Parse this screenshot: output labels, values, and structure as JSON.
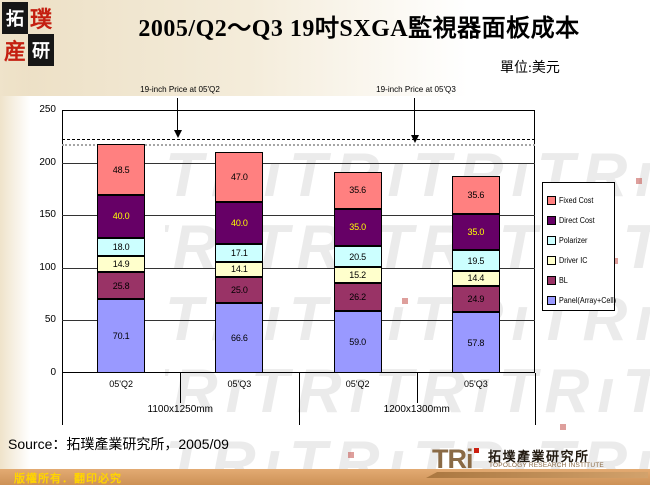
{
  "header": {
    "title": "2005/Q2～Q3 19吋SXGA監視器面板成本",
    "unit_label": "單位:美元",
    "seal_chars": [
      "拓",
      "璞",
      "産",
      "研"
    ]
  },
  "chart_data": {
    "type": "bar",
    "stacked": true,
    "title": "2005/Q2～Q3 19吋SXGA監視器面板成本",
    "unit": "美元",
    "ylim": [
      0,
      250
    ],
    "yticks": [
      0,
      50,
      100,
      150,
      200,
      250
    ],
    "grid": true,
    "legend_position": "right",
    "categories": [
      "05'Q2",
      "05'Q3",
      "05'Q2",
      "05'Q3"
    ],
    "group_labels": [
      "1100x1250mm",
      "1200x1300mm"
    ],
    "series": [
      {
        "name": "Panel(Array+Cell)",
        "color": "#9999FF",
        "label_color": "#000000",
        "values": [
          70.1,
          66.6,
          59.0,
          57.8
        ]
      },
      {
        "name": "BL",
        "color": "#993366",
        "label_color": "#000000",
        "values": [
          25.8,
          25.0,
          26.2,
          24.9
        ]
      },
      {
        "name": "Driver IC",
        "color": "#FFFFCC",
        "label_color": "#000000",
        "values": [
          14.9,
          14.1,
          15.2,
          14.4
        ]
      },
      {
        "name": "Polarizer",
        "color": "#CCFFFF",
        "label_color": "#000000",
        "values": [
          18.0,
          17.1,
          20.5,
          19.5
        ]
      },
      {
        "name": "Direct Cost",
        "color": "#660066",
        "label_color": "#FFFF00",
        "values": [
          40.0,
          40.0,
          35.0,
          35.0
        ]
      },
      {
        "name": "Fixed Cost",
        "color": "#FF8080",
        "label_color": "#000000",
        "values": [
          48.5,
          47.0,
          35.6,
          35.6
        ]
      }
    ],
    "legend_order": [
      "Fixed Cost",
      "Direct Cost",
      "Polarizer",
      "Driver IC",
      "BL",
      "Panel(Array+Cell)"
    ],
    "price_lines": [
      {
        "label": "19-inch Price at 05'Q2",
        "value": 222,
        "color": "#000000",
        "style": "dashed"
      },
      {
        "label": "19-inch Price at 05'Q3",
        "value": 218,
        "color": "#a6a6a6",
        "style": "dotted"
      }
    ]
  },
  "watermark": {
    "text": "TRıTRıTRıTRıTRı"
  },
  "source": {
    "text": "Source：拓璞產業研究所，2005/09"
  },
  "footer": {
    "copyright": "版權所有．翻印必究",
    "brand": "TRi",
    "brand_cn": "拓墣產業研究所",
    "brand_en": "TOPOLOGY RESEARCH INSTITUTE"
  }
}
